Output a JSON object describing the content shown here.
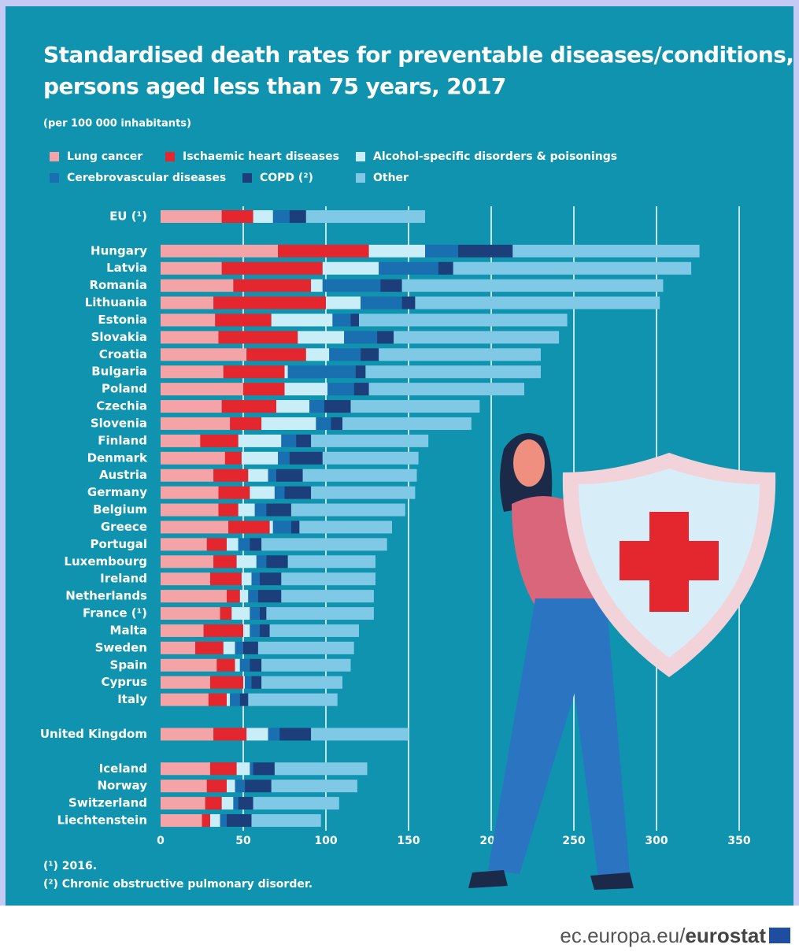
{
  "chart_data": {
    "type": "stacked-hbar",
    "title": "Standardised death rates for preventable diseases/conditions, persons aged less than 75 years, 2017",
    "subtitle": "(per 100 000 inhabitants)",
    "categories": [
      "EU (¹)",
      null,
      "Hungary",
      "Latvia",
      "Romania",
      "Lithuania",
      "Estonia",
      "Slovakia",
      "Croatia",
      "Bulgaria",
      "Poland",
      "Czechia",
      "Slovenia",
      "Finland",
      "Denmark",
      "Austria",
      "Germany",
      "Belgium",
      "Greece",
      "Portugal",
      "Luxembourg",
      "Ireland",
      "Netherlands",
      "France (¹)",
      "Malta",
      "Sweden",
      "Spain",
      "Cyprus",
      "Italy",
      null,
      "United Kingdom",
      null,
      "Iceland",
      "Norway",
      "Switzerland",
      "Liechtenstein"
    ],
    "series": [
      {
        "name": "Lung cancer",
        "color": "#f4a3a6",
        "values": [
          37,
          null,
          71,
          37,
          44,
          32,
          33,
          35,
          52,
          38,
          50,
          37,
          42,
          24,
          39,
          32,
          35,
          35,
          41,
          28,
          32,
          30,
          40,
          36,
          26,
          21,
          34,
          30,
          29,
          null,
          32,
          null,
          30,
          28,
          27,
          25
        ]
      },
      {
        "name": "Ischaemic heart diseases",
        "color": "#e4262f",
        "values": [
          19,
          null,
          55,
          61,
          47,
          68,
          34,
          48,
          36,
          37,
          25,
          33,
          19,
          23,
          10,
          21,
          19,
          12,
          25,
          12,
          14,
          19,
          8,
          7,
          24,
          17,
          11,
          20,
          11,
          null,
          20,
          null,
          16,
          12,
          10,
          5
        ]
      },
      {
        "name": "Alcohol-specific disorders & poisonings",
        "color": "#c9eef7",
        "values": [
          12,
          null,
          34,
          34,
          7,
          21,
          37,
          28,
          14,
          2,
          26,
          20,
          33,
          26,
          22,
          12,
          15,
          10,
          2,
          7,
          12,
          6,
          5,
          11,
          4,
          7,
          3,
          1,
          2,
          null,
          13,
          null,
          8,
          5,
          7,
          6
        ]
      },
      {
        "name": "Cerebrovascular diseases",
        "color": "#1a6fb0",
        "values": [
          10,
          null,
          20,
          36,
          35,
          25,
          11,
          20,
          19,
          41,
          16,
          9,
          9,
          9,
          7,
          5,
          6,
          7,
          11,
          7,
          6,
          5,
          6,
          6,
          6,
          5,
          6,
          4,
          6,
          null,
          7,
          null,
          2,
          6,
          3,
          4
        ]
      },
      {
        "name": "COPD (²)",
        "color": "#1c3f7c",
        "values": [
          10,
          null,
          33,
          9,
          13,
          8,
          5,
          10,
          11,
          6,
          9,
          16,
          7,
          9,
          20,
          16,
          16,
          15,
          5,
          7,
          13,
          13,
          14,
          4,
          6,
          9,
          7,
          6,
          5,
          null,
          19,
          null,
          13,
          16,
          9,
          15
        ]
      },
      {
        "name": "Other",
        "color": "#7fc8e6",
        "values": [
          72,
          null,
          113,
          144,
          158,
          148,
          126,
          100,
          98,
          106,
          94,
          78,
          78,
          71,
          58,
          69,
          63,
          69,
          56,
          76,
          53,
          57,
          56,
          65,
          54,
          58,
          54,
          49,
          54,
          null,
          59,
          null,
          56,
          52,
          52,
          42
        ]
      }
    ],
    "xlim": [
      0,
      350
    ],
    "xticks": [
      0,
      50,
      100,
      150,
      200,
      250,
      300,
      350
    ],
    "grid": true,
    "notes": [
      "(¹) 2016.",
      "(²) Chronic obstructive pulmonary disorder."
    ]
  },
  "footer": {
    "domain": "ec.europa.eu/",
    "brand": "eurostat"
  }
}
